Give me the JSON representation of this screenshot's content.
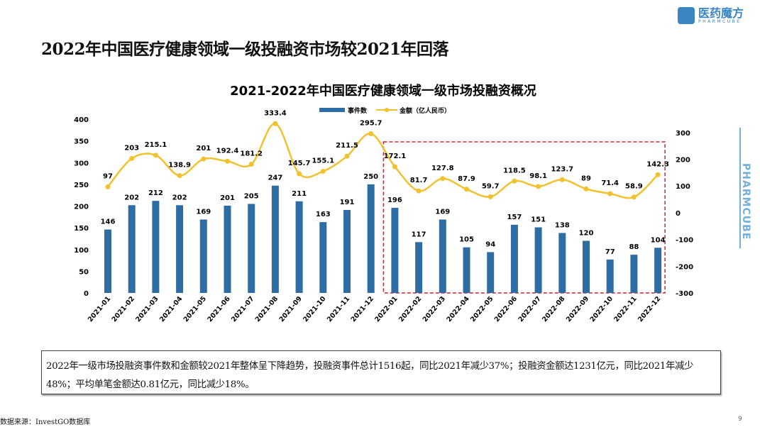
{
  "slide": {
    "title": "2022年中国医疗健康领域一级投融资市场较2021年回落",
    "logo_cn": "医药魔方",
    "logo_en": "PHARMCUBE",
    "side_brand": "PHARMCUBE",
    "summary": "2022年一级市场投融资事件数和金额较2021年整体呈下降趋势，投融资事件总计1516起，同比2021年减少37%；投融资金额达1231亿元，同比2021年减少48%；平均单笔金额达0.81亿元，同比减少18%。",
    "source": "数据来源：InvestGO数据库",
    "page_number": "9"
  },
  "chart_data": {
    "type": "bar+line",
    "title": "2021-2022年中国医疗健康领域一级市场投融资概况",
    "categories": [
      "2021-01",
      "2021-02",
      "2021-03",
      "2021-04",
      "2021-05",
      "2021-06",
      "2021-07",
      "2021-08",
      "2021-09",
      "2021-10",
      "2021-11",
      "2021-12",
      "2022-01",
      "2022-02",
      "2022-03",
      "2022-04",
      "2022-05",
      "2022-06",
      "2022-07",
      "2022-08",
      "2022-09",
      "2022-10",
      "2022-11",
      "2022-12"
    ],
    "series": [
      {
        "name": "事件数",
        "type": "bar",
        "axis": "left",
        "color": "#2e6da4",
        "values": [
          146,
          202,
          212,
          202,
          169,
          201,
          205,
          247,
          211,
          163,
          191,
          250,
          196,
          117,
          169,
          105,
          94,
          157,
          151,
          138,
          120,
          77,
          88,
          104
        ]
      },
      {
        "name": "金额（亿人民币）",
        "type": "line",
        "axis": "right",
        "color": "#f2c12e",
        "values": [
          97,
          203,
          215.1,
          138.9,
          201,
          192.4,
          181.2,
          333.4,
          145.7,
          155.1,
          211.5,
          295.7,
          172.1,
          81.7,
          127.8,
          87.9,
          59.7,
          118.5,
          98.1,
          123.7,
          89,
          71.4,
          58.9,
          142.3
        ],
        "labels": [
          "97",
          "203",
          "215.1",
          "138.9",
          "201",
          "192.4",
          "181.2",
          "333.4",
          "145.7",
          "155.1",
          "211.5",
          "295.7",
          "172.1",
          "81.7",
          "127.8",
          "87.9",
          "59.7",
          "118.5",
          "98.1",
          "123.7",
          "89",
          "71.4",
          "58.9",
          "142.3"
        ]
      }
    ],
    "left_axis": {
      "ylim": [
        0,
        400
      ],
      "ticks": [
        "0",
        "50",
        "100",
        "150",
        "200",
        "250",
        "300",
        "350",
        "400"
      ]
    },
    "right_axis": {
      "ylim": [
        -300,
        350
      ],
      "ticks": [
        "-300",
        "-200",
        "-100",
        "0",
        "100",
        "200",
        "300"
      ]
    },
    "legend": "top-center",
    "highlight": {
      "from": "2022-01",
      "to": "2022-12",
      "style": "dashed",
      "color": "#c0282d"
    },
    "grid": false
  }
}
